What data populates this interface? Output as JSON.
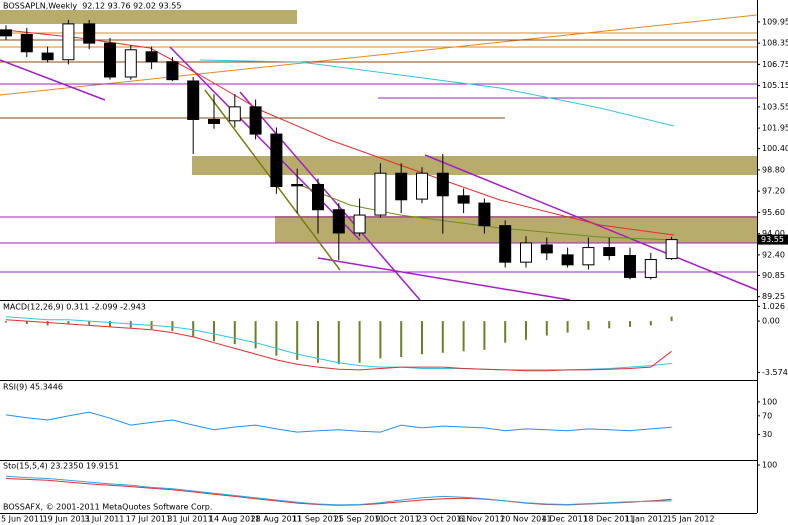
{
  "watermark": "BOSSAFX, © 2001-2011 MetaQuotes Software Corp.",
  "chart_data": [
    {
      "type": "candlestick",
      "title": "BOSSAPLN,Weekly  92.12 93.76 92.02 93.55",
      "categories": [
        "5 Jun 2011",
        null,
        "19 Jun 2011",
        null,
        "3 Jul 2011",
        null,
        "17 Jul 2011",
        null,
        "31 Jul 2011",
        null,
        "14 Aug 2011",
        null,
        "28 Aug 2011",
        null,
        "11 Sep 2011",
        null,
        "25 Sep 2011",
        null,
        "9 Oct 2011",
        null,
        "23 Oct 2011",
        null,
        "6 Nov 2011",
        null,
        "20 Nov 2011",
        null,
        "4 Dec 2011",
        null,
        "18 Dec 2011",
        null,
        "1 Jan 2012",
        null,
        "15 Jan 2012"
      ],
      "open": [
        109.35,
        109.0,
        107.6,
        107.1,
        109.8,
        108.35,
        105.8,
        107.7,
        106.95,
        105.5,
        102.6,
        102.5,
        103.55,
        101.5,
        97.7,
        97.7,
        95.8,
        94.05,
        95.4,
        98.55,
        96.6,
        98.55,
        96.85,
        96.3,
        94.6,
        91.85,
        93.15,
        92.4,
        91.65,
        92.95,
        92.35,
        90.7,
        92.12
      ],
      "high": [
        109.7,
        109.5,
        108.1,
        110.1,
        110.1,
        108.75,
        108.2,
        108.1,
        107.3,
        105.8,
        104.5,
        104.5,
        104.1,
        102.0,
        98.9,
        98.15,
        96.3,
        96.65,
        99.3,
        99.3,
        99.0,
        100.0,
        97.4,
        96.65,
        95.0,
        93.8,
        93.7,
        92.95,
        93.7,
        93.7,
        92.95,
        92.55,
        93.76
      ],
      "low": [
        108.6,
        107.3,
        106.9,
        106.75,
        107.9,
        105.6,
        105.6,
        106.4,
        105.5,
        100.0,
        101.9,
        102.0,
        101.1,
        97.0,
        95.55,
        94.0,
        92.0,
        93.8,
        95.2,
        95.55,
        96.3,
        94.0,
        95.55,
        94.0,
        91.45,
        91.45,
        92.0,
        91.45,
        91.3,
        92.0,
        90.55,
        90.55,
        92.02
      ],
      "close": [
        108.9,
        107.7,
        107.1,
        109.8,
        108.35,
        105.8,
        107.85,
        106.95,
        105.6,
        102.6,
        102.3,
        103.55,
        101.5,
        97.55,
        97.6,
        95.8,
        94.05,
        95.4,
        98.55,
        96.55,
        98.55,
        96.85,
        96.3,
        94.6,
        91.85,
        93.3,
        92.55,
        91.65,
        92.95,
        92.35,
        90.7,
        92.05,
        93.55
      ],
      "last_price": 93.55,
      "ylim": [
        89.0,
        111.6
      ],
      "yticks": [
        109.95,
        108.35,
        106.75,
        105.15,
        103.55,
        101.95,
        {
          "value": 100.4,
          "label": "100.40"
        },
        {
          "value": 98.8,
          "label": "98.80"
        },
        {
          "value": 97.2,
          "label": "97.20"
        },
        {
          "value": 95.6,
          "label": "95.60"
        },
        {
          "value": 94.0,
          "label": "94.00"
        },
        {
          "value": 92.4,
          "label": "92.40"
        },
        90.85,
        89.25
      ]
    },
    {
      "type": "macd",
      "title": "MACD(12,26,9) 0.311 -2.099 -2.943",
      "color": "#6b7f2a",
      "values": [
        -0.1,
        -0.2,
        -0.3,
        -0.2,
        -0.25,
        -0.4,
        -0.45,
        -0.55,
        -0.7,
        -1.1,
        -1.4,
        -1.6,
        -1.9,
        -2.4,
        -2.7,
        -2.9,
        -3.0,
        -2.9,
        -2.6,
        -2.5,
        -2.3,
        -2.2,
        -2.1,
        -2.0,
        -1.5,
        -1.3,
        -1.0,
        -0.8,
        -0.6,
        -0.5,
        -0.4,
        -0.3,
        0.311
      ],
      "lines": [
        {
          "color": "#35c3e0",
          "values": [
            0.3,
            0.2,
            0.1,
            0.1,
            0.0,
            -0.1,
            -0.2,
            -0.3,
            -0.4,
            -0.6,
            -0.9,
            -1.2,
            -1.5,
            -1.9,
            -2.3,
            -2.6,
            -2.9,
            -3.1,
            -3.2,
            -3.2,
            -3.3,
            -3.3,
            -3.3,
            -3.35,
            -3.4,
            -3.4,
            -3.4,
            -3.4,
            -3.35,
            -3.3,
            -3.2,
            -3.1,
            -2.943
          ]
        },
        {
          "color": "#e03030",
          "values": [
            0.1,
            0.0,
            -0.1,
            -0.2,
            -0.3,
            -0.4,
            -0.5,
            -0.6,
            -0.8,
            -1.1,
            -1.5,
            -1.9,
            -2.3,
            -2.7,
            -3.0,
            -3.2,
            -3.35,
            -3.4,
            -3.3,
            -3.2,
            -3.2,
            -3.2,
            -3.3,
            -3.35,
            -3.4,
            -3.45,
            -3.45,
            -3.4,
            -3.4,
            -3.35,
            -3.3,
            -3.2,
            -2.099
          ]
        }
      ],
      "ylim": [
        -4.1,
        1.4
      ],
      "yticks": [
        1.026,
        {
          "value": 0,
          "label": "0.00"
        },
        -3.574
      ]
    },
    {
      "type": "line",
      "title": "RSI(9) 45.3446",
      "color": "#1e90ff",
      "values": [
        72,
        66,
        61,
        70,
        78,
        65,
        50,
        56,
        61,
        50,
        40,
        46,
        50,
        42,
        35,
        38,
        40,
        37,
        35,
        50,
        44,
        48,
        46,
        44,
        38,
        42,
        40,
        38,
        42,
        40,
        38,
        42,
        45.3446
      ],
      "ylim": [
        -25,
        145
      ],
      "yticks": [
        100,
        70,
        30
      ]
    },
    {
      "type": "line",
      "title": "Sto(15,5,4) 23.2350 19.9151",
      "series": [
        {
          "color": "#e03030",
          "values": [
            70,
            68,
            66,
            62,
            58,
            55,
            52,
            48,
            45,
            40,
            35,
            30,
            25,
            20,
            15,
            12,
            10,
            11,
            14,
            18,
            22,
            25,
            26,
            24,
            20,
            15,
            12,
            11,
            13,
            15,
            17,
            20,
            23.235
          ]
        },
        {
          "color": "#35a0e0",
          "values": [
            75,
            72,
            70,
            66,
            62,
            58,
            55,
            50,
            47,
            42,
            37,
            32,
            27,
            22,
            17,
            13,
            11,
            12,
            16,
            22,
            27,
            30,
            28,
            25,
            20,
            16,
            13,
            12,
            14,
            16,
            18,
            19,
            19.9151
          ]
        }
      ],
      "ylim": [
        -7,
        109
      ],
      "yticks": [
        100
      ]
    }
  ]
}
